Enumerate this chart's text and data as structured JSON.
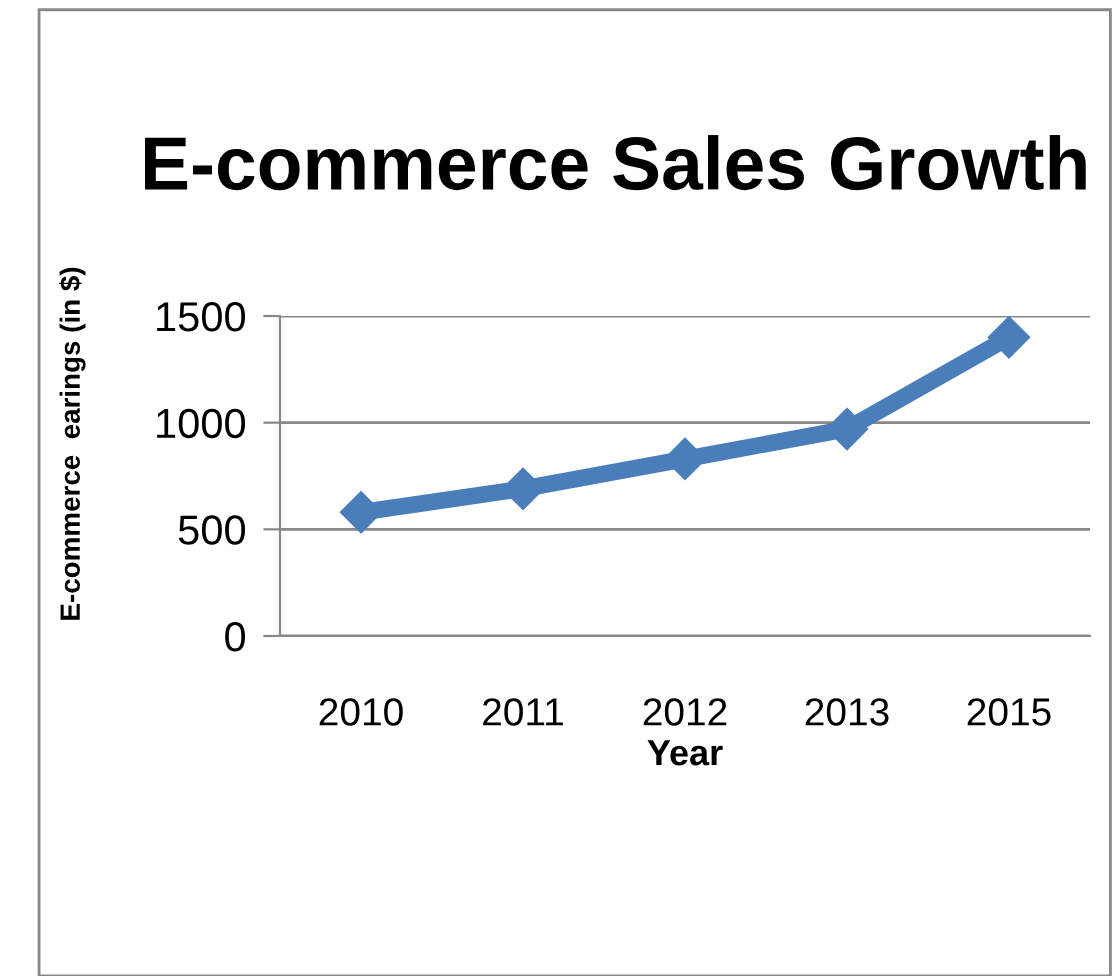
{
  "chart_data": {
    "type": "line",
    "title": "E-commerce Sales Growth",
    "xlabel": "Year",
    "ylabel": "E-commerce  earings (in $)",
    "categories": [
      "2010",
      "2011",
      "2012",
      "2013",
      "2015"
    ],
    "series": [
      {
        "color": "#4a7ebb",
        "values": [
          580,
          690,
          830,
          970,
          1400
        ]
      }
    ],
    "ylim": [
      0,
      1500
    ],
    "yticks": [
      0,
      500,
      1000,
      1500
    ],
    "grid": "y",
    "marker": "diamond",
    "line_style": "solid",
    "legend": false
  }
}
